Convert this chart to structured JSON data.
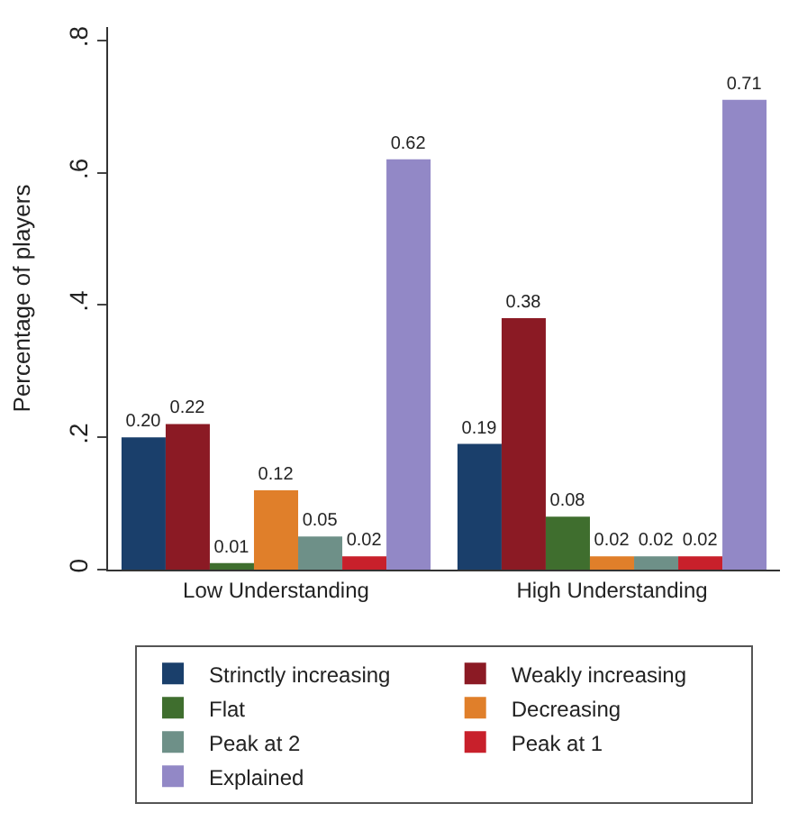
{
  "chart_data": {
    "type": "bar",
    "ylabel": "Percentage of players",
    "categories": [
      "Low Understanding",
      "High Understanding"
    ],
    "ylim": [
      0,
      0.82
    ],
    "yticks": [
      {
        "value": 0,
        "label": "0"
      },
      {
        "value": 0.2,
        "label": ".2"
      },
      {
        "value": 0.4,
        "label": ".4"
      },
      {
        "value": 0.6,
        "label": ".6"
      },
      {
        "value": 0.8,
        "label": ".8"
      }
    ],
    "legend": "bottom",
    "series": [
      {
        "name": "Strinctly increasing",
        "color": "#1a3f6b",
        "values": [
          0.2,
          0.19
        ],
        "value_labels": [
          "0.20",
          "0.19"
        ]
      },
      {
        "name": "Weakly increasing",
        "color": "#8b1a24",
        "values": [
          0.22,
          0.38
        ],
        "value_labels": [
          "0.22",
          "0.38"
        ]
      },
      {
        "name": "Flat",
        "color": "#3f6e2e",
        "values": [
          0.01,
          0.08
        ],
        "value_labels": [
          "0.01",
          "0.08"
        ]
      },
      {
        "name": "Decreasing",
        "color": "#e07f2a",
        "values": [
          0.12,
          0.02
        ],
        "value_labels": [
          "0.12",
          "0.02"
        ]
      },
      {
        "name": "Peak at 2",
        "color": "#6e9088",
        "values": [
          0.05,
          0.02
        ],
        "value_labels": [
          "0.05",
          "0.02"
        ]
      },
      {
        "name": "Peak at 1",
        "color": "#c8202b",
        "values": [
          0.02,
          0.02
        ],
        "value_labels": [
          "0.02",
          "0.02"
        ]
      },
      {
        "name": "Explained",
        "color": "#9288c6",
        "values": [
          0.62,
          0.71
        ],
        "value_labels": [
          "0.62",
          "0.71"
        ]
      }
    ]
  }
}
